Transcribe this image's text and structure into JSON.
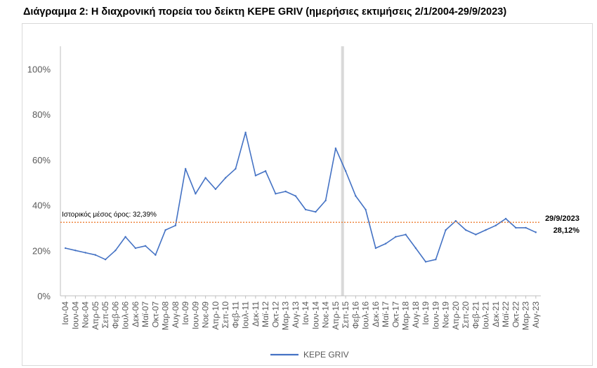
{
  "title": "Διάγραμμα 2: Η διαχρονική πορεία του δείκτη ΚΕΡΕ GRIV (ημερήσιες εκτιμήσεις 2/1/2004-29/9/2023)",
  "chart_data": {
    "type": "line",
    "ylim": [
      0,
      110
    ],
    "yticks": [
      "0%",
      "20%",
      "40%",
      "60%",
      "80%",
      "100%"
    ],
    "ytick_values": [
      0,
      20,
      40,
      60,
      80,
      100
    ],
    "grid": false,
    "legend_position": "bottom",
    "x_categories": [
      "Ιαν-04",
      "Ιουν-04",
      "Νοε-04",
      "Απρ-05",
      "Σεπ-05",
      "Φεβ-06",
      "Ιουλ-06",
      "Δεκ-06",
      "Μαϊ-07",
      "Οκτ-07",
      "Μαρ-08",
      "Αυγ-08",
      "Ιαν-09",
      "Ιουν-09",
      "Νοε-09",
      "Απρ-10",
      "Σεπ-10",
      "Φεβ-11",
      "Ιουλ-11",
      "Δεκ-11",
      "Μαϊ-12",
      "Οκτ-12",
      "Μαρ-13",
      "Αυγ-13",
      "Ιαν-14",
      "Ιουν-14",
      "Νοε-14",
      "Απρ-15",
      "Σεπ-15",
      "Φεβ-16",
      "Ιουλ-16",
      "Δεκ-16",
      "Μαϊ-17",
      "Οκτ-17",
      "Μαρ-18",
      "Αυγ-18",
      "Ιαν-19",
      "Ιουν-19",
      "Νοε-19",
      "Απρ-20",
      "Σεπ-20",
      "Φεβ-21",
      "Ιουλ-21",
      "Δεκ-21",
      "Μαϊ-22",
      "Οκτ-22",
      "Μαρ-23",
      "Αυγ-23"
    ],
    "series": [
      {
        "name": "ΚΕΡΕ GRIV",
        "color": "#4472c4",
        "x": [
          "Ιαν-04",
          "Ιουν-04",
          "Νοε-04",
          "Απρ-05",
          "Σεπ-05",
          "Φεβ-06",
          "Ιουλ-06",
          "Δεκ-06",
          "Μαϊ-07",
          "Οκτ-07",
          "Μαρ-08",
          "Αυγ-08",
          "Ιαν-09",
          "Ιουν-09",
          "Νοε-09",
          "Απρ-10",
          "Σεπ-10",
          "Φεβ-11",
          "Ιουλ-11",
          "Δεκ-11",
          "Μαϊ-12",
          "Οκτ-12",
          "Μαρ-13",
          "Αυγ-13",
          "Ιαν-14",
          "Ιουν-14",
          "Νοε-14",
          "Απρ-15",
          "Σεπ-15",
          "Φεβ-16",
          "Ιουλ-16",
          "Δεκ-16",
          "Μαϊ-17",
          "Οκτ-17",
          "Μαρ-18",
          "Αυγ-18",
          "Ιαν-19",
          "Ιουν-19",
          "Νοε-19",
          "Απρ-20",
          "Σεπ-20",
          "Φεβ-21",
          "Ιουλ-21",
          "Δεκ-21",
          "Μαϊ-22",
          "Οκτ-22",
          "Μαρ-23",
          "Αυγ-23"
        ],
        "values": [
          21,
          20,
          19,
          18,
          16,
          20,
          26,
          21,
          22,
          18,
          29,
          31,
          56,
          45,
          52,
          47,
          52,
          56,
          72,
          53,
          55,
          45,
          46,
          44,
          38,
          37,
          42,
          65,
          55,
          44,
          38,
          21,
          23,
          26,
          27,
          21,
          15,
          16,
          29,
          33,
          29,
          27,
          29,
          31,
          34,
          30,
          30,
          28
        ]
      }
    ],
    "reference_line": {
      "label": "Ιστορικός μέσος όρος: 32,39%",
      "value": 32.39,
      "color": "#ed7d31"
    },
    "highlight_band": {
      "x": "Σεπ-15",
      "color": "#d9d9d9"
    },
    "end_annotation": {
      "date": "29/9/2023",
      "value_label": "28,12%"
    }
  }
}
